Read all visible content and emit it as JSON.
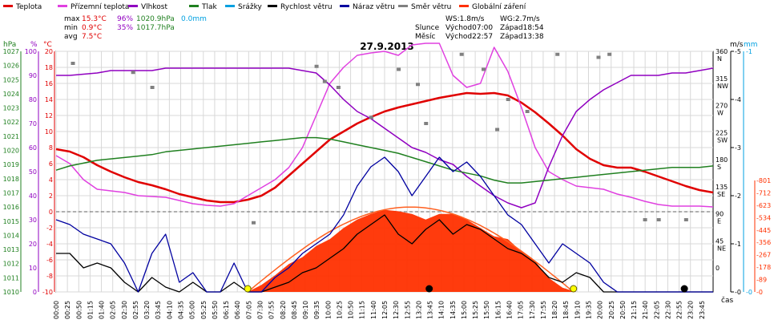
{
  "chart_data": {
    "type": "line",
    "title": "27.9.2013",
    "xlabel": "čas",
    "legend": [
      {
        "name": "Teplota",
        "color": "#e00000"
      },
      {
        "name": "Přízemní teplota",
        "color": "#e040e0"
      },
      {
        "name": "Vlhkost",
        "color": "#9000c0"
      },
      {
        "name": "Tlak",
        "color": "#208020"
      },
      {
        "name": "Srážky",
        "color": "#00a0e0"
      },
      {
        "name": "Rychlost větru",
        "color": "#000000"
      },
      {
        "name": "Náraz větru",
        "color": "#0000a0"
      },
      {
        "name": "Směr větru",
        "color": "#808080"
      },
      {
        "name": "Globální záření",
        "color": "#ff3000"
      }
    ],
    "stats": {
      "max_label": "max",
      "max_temp": "15.3°C",
      "max_hum": "96%",
      "max_press": "1020.9hPa",
      "max_rain": "0.0mm",
      "min_label": "min",
      "min_temp": "0.9°C",
      "min_hum": "35%",
      "min_press": "1017.7hPa",
      "avg_label": "avg",
      "avg_temp": "7.5°C",
      "ws": "WS:1.8m/s",
      "wg": "WG:2.7m/s",
      "sun_label": "Slunce",
      "sunrise": "Východ07:00",
      "sunset": "Západ18:54",
      "moon_label": "Měsíc",
      "moonrise": "Východ22:57",
      "moonset": "Západ13:38"
    },
    "axis_units": {
      "pressure": "hPa",
      "humidity": "%",
      "temp": "°C",
      "wind": "m/s",
      "rain": "mm",
      "radiation": "W/m2"
    },
    "time_ticks": [
      "00:00",
      "00:25",
      "00:50",
      "01:15",
      "01:40",
      "02:05",
      "02:30",
      "02:55",
      "03:20",
      "03:45",
      "04:10",
      "04:35",
      "05:00",
      "05:25",
      "05:50",
      "06:15",
      "06:40",
      "07:05",
      "07:30",
      "07:55",
      "08:20",
      "08:45",
      "09:10",
      "09:35",
      "10:00",
      "10:25",
      "10:50",
      "11:15",
      "11:40",
      "12:05",
      "12:30",
      "12:55",
      "13:20",
      "13:45",
      "14:10",
      "14:35",
      "15:00",
      "15:25",
      "15:50",
      "16:15",
      "16:40",
      "17:05",
      "17:30",
      "17:55",
      "18:20",
      "18:45",
      "19:10",
      "19:35",
      "20:00",
      "20:25",
      "20:50",
      "21:15",
      "21:40",
      "22:05",
      "22:30",
      "22:55",
      "23:20",
      "23:45"
    ],
    "pressure_ticks": [
      "1027",
      "1026",
      "1025",
      "1024",
      "1023",
      "1022",
      "1021",
      "1020",
      "1019",
      "1018",
      "1017",
      "1016",
      "1015",
      "1014",
      "1013",
      "1012",
      "1011",
      "1010"
    ],
    "humidity_ticks": [
      "100",
      "90",
      "80",
      "70",
      "60",
      "50",
      "40",
      "30",
      "20",
      "10",
      "0"
    ],
    "temp_ticks": [
      "20",
      "18",
      "16",
      "14",
      "12",
      "10",
      "8",
      "6",
      "4",
      "2",
      "0",
      "-2",
      "-4",
      "-6",
      "-8",
      "-10"
    ],
    "direction_ticks": [
      {
        "deg": "360",
        "dir": "N"
      },
      {
        "deg": "315",
        "dir": "NW"
      },
      {
        "deg": "270",
        "dir": "W"
      },
      {
        "deg": "225",
        "dir": "SW"
      },
      {
        "deg": "180",
        "dir": "S"
      },
      {
        "deg": "135",
        "dir": "SE"
      },
      {
        "deg": "90",
        "dir": "E"
      },
      {
        "deg": "45",
        "dir": "NE"
      },
      {
        "deg": "0",
        "dir": ""
      }
    ],
    "wind_ticks": [
      "5",
      "4",
      "3",
      "2",
      "1",
      "0"
    ],
    "rain_ticks": [
      "1",
      "0"
    ],
    "radiation_ticks": [
      "801",
      "712",
      "623",
      "534",
      "445",
      "356",
      "267",
      "178",
      "89",
      "0"
    ],
    "x_hours": [
      0,
      0.5,
      1,
      1.5,
      2,
      2.5,
      3,
      3.5,
      4,
      4.5,
      5,
      5.5,
      6,
      6.5,
      7,
      7.5,
      8,
      8.5,
      9,
      9.5,
      10,
      10.5,
      11,
      11.5,
      12,
      12.5,
      13,
      13.5,
      14,
      14.5,
      15,
      15.5,
      16,
      16.5,
      17,
      17.5,
      18,
      18.5,
      19,
      19.5,
      20,
      20.5,
      21,
      21.5,
      22,
      22.5,
      23,
      23.5,
      24
    ],
    "series": [
      {
        "name": "Teplota",
        "axis": "temp",
        "color": "#e00000",
        "values": [
          7.8,
          7.5,
          6.8,
          5.8,
          5.0,
          4.3,
          3.7,
          3.3,
          2.8,
          2.2,
          1.8,
          1.4,
          1.2,
          1.2,
          1.5,
          2.0,
          3.0,
          4.5,
          6.0,
          7.5,
          9.0,
          10.0,
          11.0,
          11.8,
          12.5,
          13.0,
          13.4,
          13.8,
          14.2,
          14.5,
          14.8,
          14.7,
          14.8,
          14.5,
          13.6,
          12.4,
          11.0,
          9.5,
          7.8,
          6.6,
          5.8,
          5.5,
          5.5,
          5.0,
          4.4,
          3.8,
          3.2,
          2.7,
          2.4
        ]
      },
      {
        "name": "Přízemní teplota",
        "axis": "temp",
        "color": "#e040e0",
        "values": [
          7.0,
          6.0,
          4.0,
          2.8,
          2.6,
          2.4,
          2.0,
          1.9,
          1.8,
          1.4,
          1.0,
          0.8,
          0.7,
          1.0,
          2.0,
          3.0,
          4.0,
          5.5,
          8.0,
          12.0,
          16.0,
          18.0,
          19.5,
          19.8,
          20.0,
          19.5,
          20.8,
          21.0,
          21.0,
          17.0,
          15.5,
          16.0,
          20.5,
          17.5,
          13.0,
          8.0,
          5.0,
          4.0,
          3.2,
          3.0,
          2.8,
          2.2,
          1.8,
          1.3,
          0.9,
          0.7,
          0.7,
          0.7,
          0.6
        ]
      },
      {
        "name": "Vlhkost",
        "axis": "humidity",
        "color": "#9000c0",
        "values": [
          90,
          90,
          90.5,
          91,
          92,
          92,
          92,
          92,
          93,
          93,
          93,
          93,
          93,
          93,
          93,
          93,
          93,
          93,
          92,
          91,
          86,
          80,
          75,
          72,
          68,
          64,
          60,
          58,
          55,
          53,
          48,
          44,
          40,
          37,
          35,
          37,
          52,
          65,
          75,
          80,
          84,
          87,
          90,
          90,
          90,
          91,
          91,
          92,
          93
        ]
      },
      {
        "name": "Tlak",
        "axis": "pressure",
        "color": "#208020",
        "values": [
          1018.6,
          1018.9,
          1019.1,
          1019.3,
          1019.4,
          1019.5,
          1019.6,
          1019.7,
          1019.9,
          1020.0,
          1020.1,
          1020.2,
          1020.3,
          1020.4,
          1020.5,
          1020.6,
          1020.7,
          1020.8,
          1020.9,
          1020.9,
          1020.8,
          1020.6,
          1020.4,
          1020.2,
          1020.0,
          1019.8,
          1019.5,
          1019.2,
          1018.9,
          1018.6,
          1018.4,
          1018.2,
          1017.9,
          1017.7,
          1017.7,
          1017.8,
          1017.9,
          1018.0,
          1018.1,
          1018.2,
          1018.3,
          1018.4,
          1018.5,
          1018.6,
          1018.7,
          1018.8,
          1018.8,
          1018.8,
          1018.9
        ]
      },
      {
        "name": "Globální záření",
        "axis": "radiation",
        "color": "#ff3000",
        "values": [
          0,
          0,
          0,
          0,
          0,
          0,
          0,
          0,
          0,
          0,
          0,
          0,
          0,
          0,
          0,
          50,
          120,
          200,
          250,
          330,
          380,
          460,
          520,
          560,
          590,
          580,
          560,
          520,
          560,
          560,
          520,
          460,
          400,
          380,
          290,
          220,
          100,
          30,
          0,
          0,
          0,
          0,
          0,
          0,
          0,
          0,
          0,
          0,
          0
        ]
      },
      {
        "name": "Rychlost větru",
        "axis": "wind",
        "color": "#000000",
        "values": [
          0.8,
          0.8,
          0.5,
          0.6,
          0.5,
          0.2,
          0,
          0.3,
          0.1,
          0,
          0.2,
          0,
          0,
          0.2,
          0,
          0,
          0.1,
          0.2,
          0.4,
          0.5,
          0.7,
          0.9,
          1.2,
          1.4,
          1.6,
          1.2,
          1.0,
          1.3,
          1.5,
          1.2,
          1.4,
          1.3,
          1.1,
          0.9,
          0.8,
          0.6,
          0.3,
          0.2,
          0.4,
          0.3,
          0,
          0,
          0,
          0,
          0,
          0,
          0,
          0,
          0
        ]
      },
      {
        "name": "Náraz větru",
        "axis": "wind",
        "color": "#0000a0",
        "values": [
          1.5,
          1.4,
          1.2,
          1.1,
          1.0,
          0.6,
          0,
          0.8,
          1.2,
          0.2,
          0.4,
          0,
          0,
          0.6,
          0,
          0,
          0.3,
          0.5,
          0.8,
          1.0,
          1.2,
          1.6,
          2.2,
          2.6,
          2.8,
          2.5,
          2.0,
          2.4,
          2.8,
          2.5,
          2.7,
          2.4,
          2.0,
          1.6,
          1.4,
          1.0,
          0.6,
          1.0,
          0.8,
          0.6,
          0.2,
          0,
          0,
          0,
          0,
          0,
          0,
          0,
          0
        ]
      }
    ],
    "direction_hours": [
      0.6,
      2.8,
      3.5,
      7.2,
      9.5,
      9.8,
      10.3,
      11.5,
      12.5,
      13.2,
      13.5,
      14.8,
      15.6,
      16.1,
      16.5,
      17.2,
      18.3,
      19.8,
      20.2,
      21.5,
      22.0,
      23.0
    ],
    "direction_values": [
      340,
      325,
      300,
      75,
      335,
      310,
      300,
      250,
      330,
      305,
      240,
      355,
      330,
      230,
      280,
      260,
      355,
      350,
      355,
      80,
      80,
      80
    ],
    "solar_theoretical_peak": 610,
    "sunrise_hour": 7.0,
    "sunset_hour": 18.9
  }
}
